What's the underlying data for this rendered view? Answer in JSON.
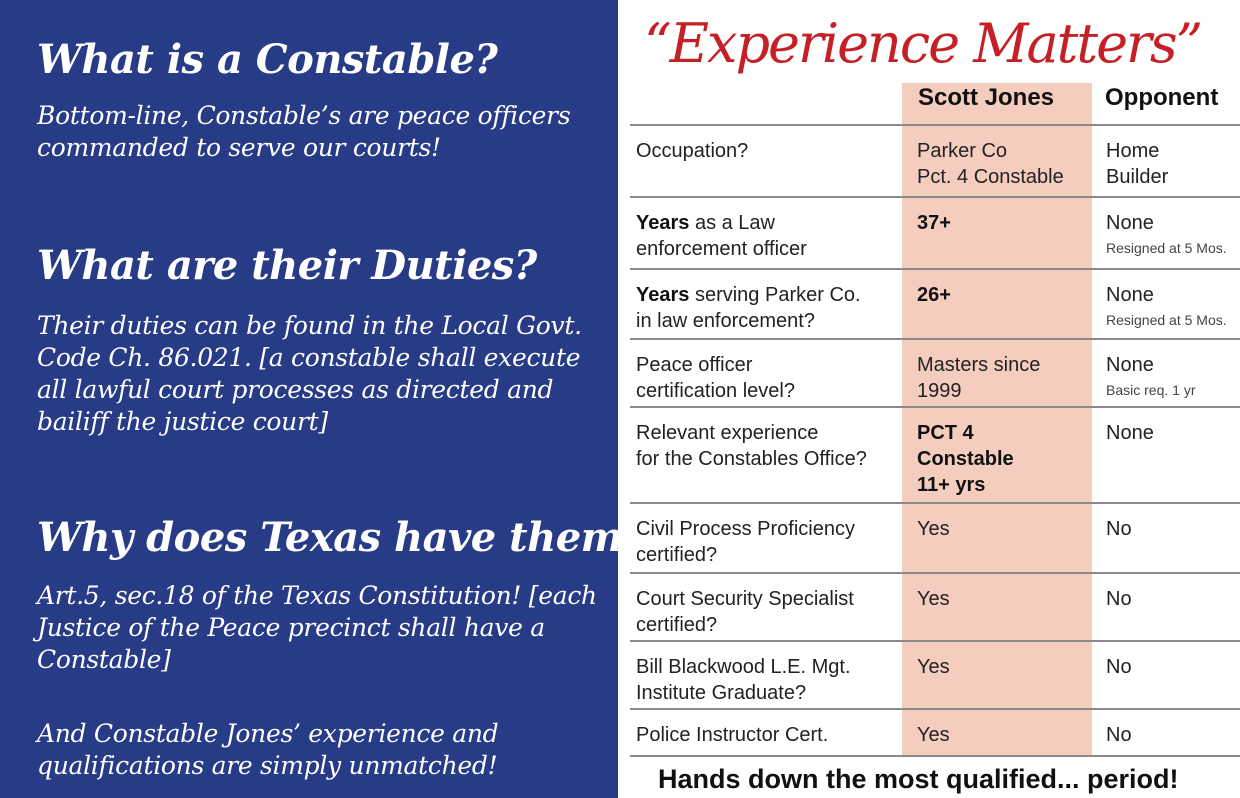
{
  "left_panel": {
    "q1": "What is a Constable?",
    "a1": "Bottom-line, Constable’s are peace officers commanded to serve our courts!",
    "q2": "What are their Duties?",
    "a2": "Their duties can be found in the Local Govt. Code Ch. 86.021. [a constable shall execute all lawful court processes as directed and bailiff the justice court]",
    "q3": "Why does Texas have them?",
    "a3": "Art.5, sec.18 of the Texas Constitution! [each Justice of the Peace precinct shall have a Constable]",
    "closing": "And Constable Jones’ experience and qualifications are simply unmatched!"
  },
  "comparison": {
    "headline": "“Experience Matters”",
    "columns": [
      "Scott Jones",
      "Opponent"
    ],
    "rows": [
      {
        "label_bold": "",
        "label": "Occupation?",
        "jones": "Parker Co\nPct. 4 Constable",
        "jones_bold": false,
        "opponent": "Home\nBuilder",
        "opponent_note": ""
      },
      {
        "label_bold": "Years",
        "label": " as a Law\nenforcement officer",
        "jones": "37+",
        "jones_bold": true,
        "opponent": "None",
        "opponent_note": "Resigned at 5 Mos."
      },
      {
        "label_bold": "Years",
        "label": " serving Parker Co.\n in law enforcement?",
        "jones": "26+",
        "jones_bold": true,
        "opponent": "None",
        "opponent_note": "Resigned at 5 Mos."
      },
      {
        "label_bold": "",
        "label": "Peace officer\ncertification level?",
        "jones": "Masters since\n1999",
        "jones_bold": false,
        "opponent": "None",
        "opponent_note": "Basic req. 1 yr"
      },
      {
        "label_bold": "",
        "label": "Relevant experience\nfor the Constables Office?",
        "jones": "PCT 4\nConstable\n11+ yrs",
        "jones_bold": true,
        "opponent": "None",
        "opponent_note": ""
      },
      {
        "label_bold": "",
        "label": "Civil Process Proficiency\ncertified?",
        "jones": "Yes",
        "jones_bold": false,
        "opponent": "No",
        "opponent_note": ""
      },
      {
        "label_bold": "",
        "label": "Court Security Specialist\ncertified?",
        "jones": "Yes",
        "jones_bold": false,
        "opponent": "No",
        "opponent_note": ""
      },
      {
        "label_bold": "",
        "label": "Bill Blackwood L.E. Mgt.\nInstitute Graduate?",
        "jones": "Yes",
        "jones_bold": false,
        "opponent": "No",
        "opponent_note": ""
      },
      {
        "label_bold": "",
        "label": "Police Instructor Cert.",
        "jones": "Yes",
        "jones_bold": false,
        "opponent": "No",
        "opponent_note": ""
      }
    ],
    "tagline": "Hands down the most qualified... period!"
  },
  "colors": {
    "left_background": "#273b87",
    "headline_red": "#c62027",
    "highlight_column": "#f5cdbf"
  }
}
